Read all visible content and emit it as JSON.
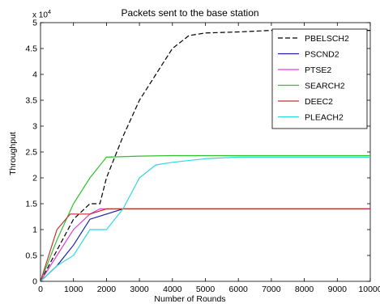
{
  "chart_data": {
    "type": "line",
    "title": "Packets sent to the base station",
    "xlabel": "Number of Rounds",
    "ylabel": "Throughput",
    "y_exponent_base": "x 10",
    "y_exponent_power": "4",
    "xlim": [
      0,
      10000
    ],
    "ylim": [
      0,
      5
    ],
    "xticks": [
      0,
      1000,
      2000,
      3000,
      4000,
      5000,
      6000,
      7000,
      8000,
      9000,
      10000
    ],
    "xtick_labels": [
      "0",
      "1000",
      "2000",
      "3000",
      "4000",
      "5000",
      "6000",
      "7000",
      "8000",
      "9000",
      "10000"
    ],
    "yticks": [
      0,
      0.5,
      1,
      1.5,
      2,
      2.5,
      3,
      3.5,
      4,
      4.5,
      5
    ],
    "ytick_labels": [
      "0",
      "0.5",
      "1",
      "1.5",
      "2",
      "2.5",
      "3",
      "3.5",
      "4",
      "4.5",
      "5"
    ],
    "grid": false,
    "legend_position": "top-right",
    "series": [
      {
        "name": "PBELSCH2",
        "color": "#000000",
        "dash": "dashed",
        "x": [
          0,
          500,
          1000,
          1500,
          1800,
          2000,
          2500,
          3000,
          3500,
          4000,
          4500,
          5000,
          6000,
          7000,
          8000,
          10000
        ],
        "y": [
          0,
          0.6,
          1.2,
          1.5,
          1.5,
          2.0,
          2.8,
          3.5,
          4.0,
          4.5,
          4.75,
          4.8,
          4.82,
          4.85,
          4.85,
          4.85
        ]
      },
      {
        "name": "PSCND2",
        "color": "#1f1fa8",
        "dash": "solid",
        "x": [
          0,
          500,
          1000,
          1500,
          2000,
          2500,
          3000,
          10000
        ],
        "y": [
          0,
          0.3,
          0.7,
          1.2,
          1.3,
          1.4,
          1.4,
          1.4
        ]
      },
      {
        "name": "PTSE2",
        "color": "#e040e0",
        "dash": "solid",
        "x": [
          0,
          500,
          1000,
          1500,
          1800,
          2000,
          10000
        ],
        "y": [
          0,
          0.5,
          1.0,
          1.3,
          1.4,
          1.4,
          1.4
        ]
      },
      {
        "name": "SEARCH2",
        "color": "#2ec02e",
        "dash": "solid",
        "x": [
          0,
          500,
          1000,
          1500,
          2000,
          3000,
          4000,
          10000
        ],
        "y": [
          0,
          0.8,
          1.5,
          2.0,
          2.4,
          2.42,
          2.43,
          2.43
        ]
      },
      {
        "name": "DEEC2",
        "color": "#c03030",
        "dash": "solid",
        "x": [
          0,
          500,
          900,
          1500,
          2000,
          10000
        ],
        "y": [
          0,
          1.0,
          1.3,
          1.3,
          1.4,
          1.4
        ]
      },
      {
        "name": "PLEACH2",
        "color": "#30d8e0",
        "dash": "solid",
        "x": [
          0,
          500,
          1000,
          1500,
          2000,
          2500,
          3000,
          3500,
          4000,
          5000,
          6000,
          10000
        ],
        "y": [
          0,
          0.3,
          0.5,
          1.0,
          1.0,
          1.4,
          2.0,
          2.25,
          2.3,
          2.37,
          2.4,
          2.4
        ]
      }
    ]
  }
}
